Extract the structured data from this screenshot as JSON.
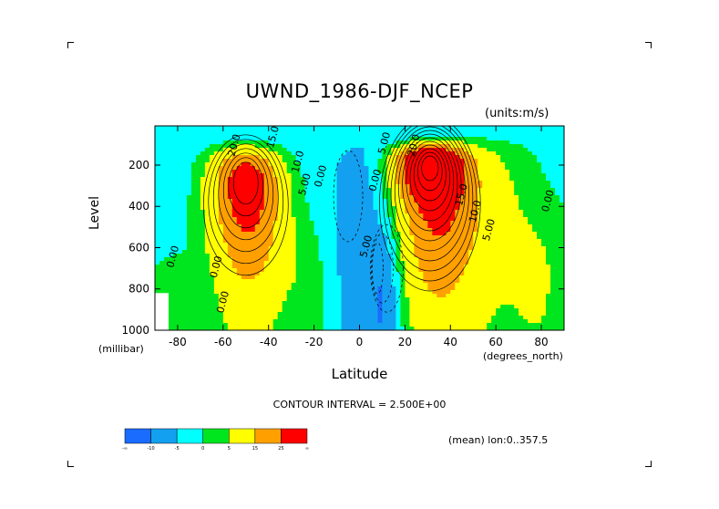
{
  "chart_data": {
    "type": "heatmap",
    "title": "UWND_1986-DJF_NCEP",
    "units": "(units:m/s)",
    "xlabel": "Latitude",
    "xlabel_unit": "(degrees_north)",
    "ylabel": "Level",
    "ylabel_unit": "(millibar)",
    "x_ticks": [
      "-80",
      "-60",
      "-40",
      "-20",
      "0",
      "20",
      "40",
      "60",
      "80"
    ],
    "x_tick_values": [
      -80,
      -60,
      -40,
      -20,
      0,
      20,
      40,
      60,
      80
    ],
    "y_ticks": [
      "200",
      "400",
      "600",
      "800",
      "1000"
    ],
    "y_tick_values": [
      200,
      400,
      600,
      800,
      1000
    ],
    "xlim": [
      -90,
      90
    ],
    "ylim": [
      1000,
      10
    ],
    "y_inverted": true,
    "contour_interval": "CONTOUR INTERVAL = 2.500E+00",
    "mean_note": "(mean) lon:0..357.5",
    "jets": [
      {
        "lat": -50,
        "level": 250,
        "peak": 27.5,
        "label": "20.0"
      },
      {
        "lat": 30,
        "level": 200,
        "peak": 45,
        "label": "15.0"
      }
    ],
    "contour_labels": [
      {
        "text": "20.0",
        "lat": -55,
        "level": 160
      },
      {
        "text": "15.0",
        "lat": -38,
        "level": 120
      },
      {
        "text": "10.0",
        "lat": -27,
        "level": 240
      },
      {
        "text": "5.00",
        "lat": -24,
        "level": 350
      },
      {
        "text": "0.00",
        "lat": -17,
        "level": 310
      },
      {
        "text": "0.00",
        "lat": 7,
        "level": 330
      },
      {
        "text": "5.00",
        "lat": 11,
        "level": 150
      },
      {
        "text": "20.0",
        "lat": 24,
        "level": 160
      },
      {
        "text": "15.0",
        "lat": 45,
        "level": 400
      },
      {
        "text": "10.0",
        "lat": 51,
        "level": 480
      },
      {
        "text": "5.00",
        "lat": 57,
        "level": 570
      },
      {
        "text": "0.00",
        "lat": 83,
        "level": 430
      },
      {
        "text": "5.00",
        "lat": 3,
        "level": 650
      },
      {
        "text": "0.00",
        "lat": -82,
        "level": 700
      },
      {
        "text": "0.00",
        "lat": -63,
        "level": 750
      },
      {
        "text": "0.00",
        "lat": -60,
        "level": 920
      }
    ],
    "colorbar": {
      "colors": [
        "#1a6cff",
        "#14a0f0",
        "#00ffff",
        "#00e61e",
        "#ffff00",
        "#ffa000",
        "#ff0000"
      ],
      "labels": [
        "-∞",
        "-10",
        "-5",
        "0",
        "5",
        "15",
        "25",
        "∞"
      ]
    }
  }
}
